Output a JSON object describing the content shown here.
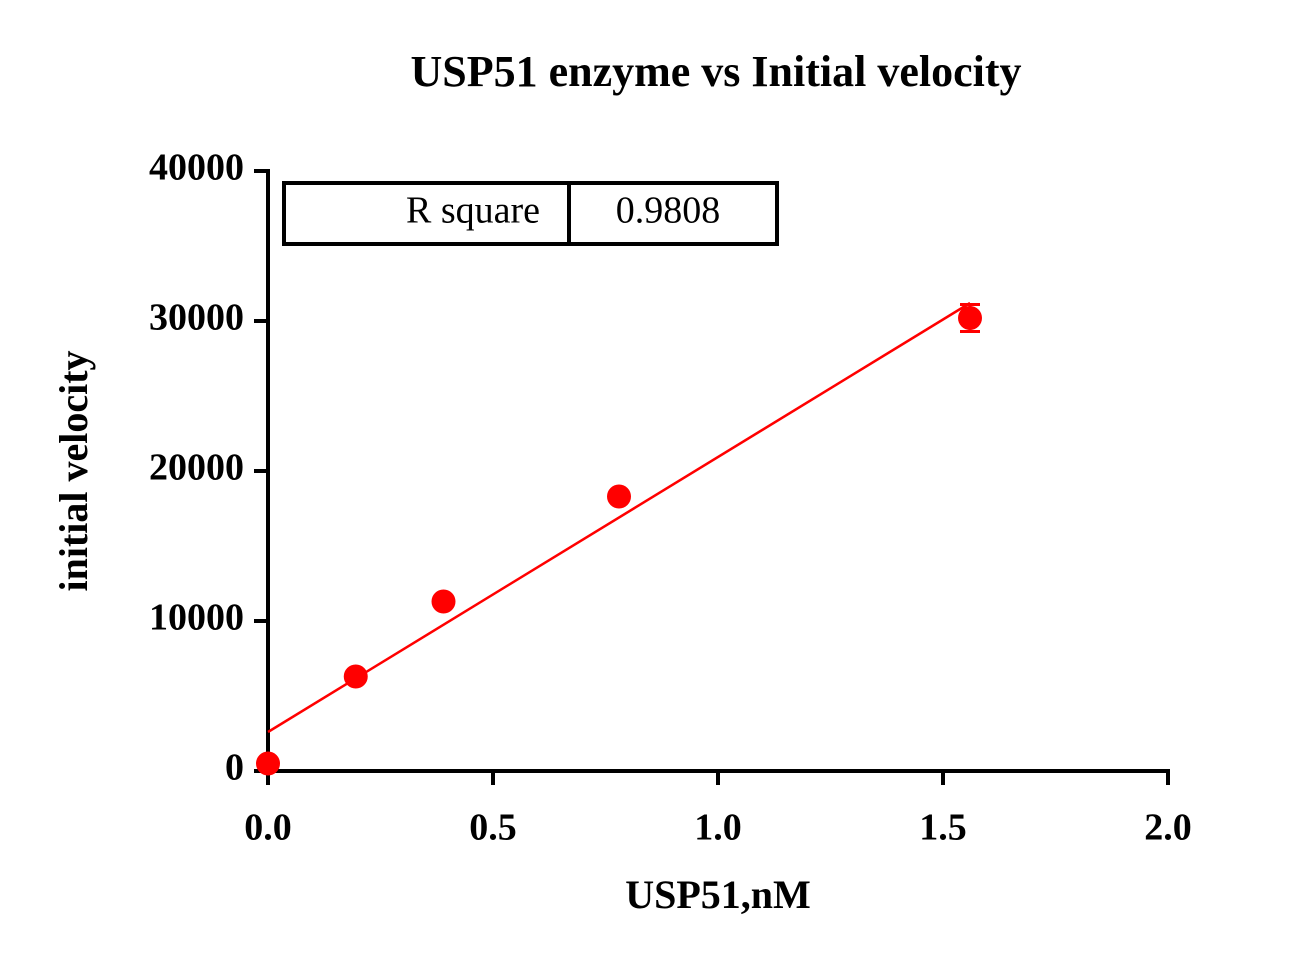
{
  "chart_data": {
    "type": "scatter",
    "title": "USP51 enzyme vs Initial velocity",
    "xlabel": "USP51,nM",
    "ylabel": "initial velocity",
    "xlim": [
      0,
      2.0
    ],
    "xticks": [
      {
        "value": 0,
        "label": "0.0"
      },
      {
        "value": 0.5,
        "label": "0.5"
      },
      {
        "value": 1.0,
        "label": "1.0"
      },
      {
        "value": 1.5,
        "label": "1.5"
      },
      {
        "value": 2.0,
        "label": "2.0"
      }
    ],
    "ylim": [
      0,
      40000
    ],
    "yticks": [
      0,
      10000,
      20000,
      30000,
      40000
    ],
    "series": [
      {
        "type": "scatter",
        "color": "#ff0000",
        "x": [
          0,
          0.195,
          0.39,
          0.78,
          1.56
        ],
        "values": [
          500,
          6300,
          11300,
          18300,
          30200
        ],
        "errors": [
          0,
          0,
          0,
          0,
          900
        ]
      },
      {
        "type": "line",
        "color": "#ff0000",
        "x": [
          0,
          1.56
        ],
        "values": [
          2600,
          31200
        ]
      }
    ],
    "table": [
      [
        "R square",
        0.9808
      ]
    ]
  }
}
